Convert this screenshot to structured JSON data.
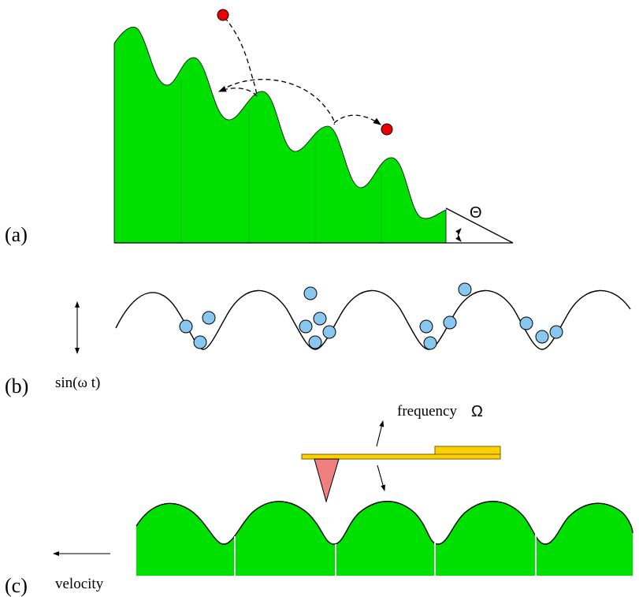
{
  "panels": {
    "a": {
      "label": "(a)",
      "angle_symbol": "Θ"
    },
    "b": {
      "label": "(b)",
      "drive_label": "sin(ω t)"
    },
    "c": {
      "label": "(c)",
      "frequency_label": "frequency",
      "frequency_symbol": "Ω",
      "velocity_label": "velocity"
    }
  },
  "colors": {
    "surface_green": "#00e000",
    "particle_red": "#ee0000",
    "grain_blue": "#88c8f0",
    "cantilever_yellow": "#ffd000",
    "cantilever_edge": "#7a6000",
    "tip_pink": "#f08080"
  }
}
